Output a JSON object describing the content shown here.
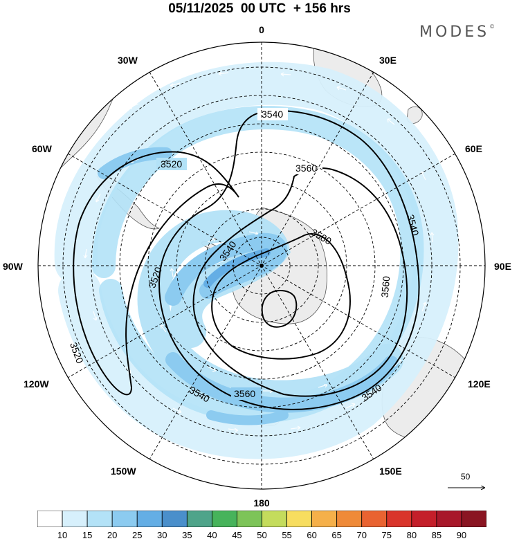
{
  "title": "05/11/2025  00 UTC  + 156 hrs",
  "brand": "MODES",
  "brand_mark": "©",
  "longitude_labels": {
    "top": "0",
    "bottom": "180",
    "left": "90W",
    "right": "90E",
    "nw30": "30W",
    "nw60": "60W",
    "sw120": "120W",
    "sw150": "150W",
    "ne30": "30E",
    "ne60": "60E",
    "se120": "120E",
    "se150": "150E"
  },
  "contour_labels": {
    "c3520a": "3520",
    "c3520b": "3520",
    "c3520c": "3520",
    "c3540a": "3540",
    "c3540b": "3540",
    "c3540c": "3540",
    "c3540d": "3540",
    "c3540e": "3540",
    "c3560a": "3560",
    "c3560b": "3560",
    "c3560c": "3560",
    "c3580": "3580"
  },
  "vector_scale_label": "50",
  "colorbar": {
    "ticks": [
      "10",
      "15",
      "20",
      "25",
      "30",
      "35",
      "40",
      "45",
      "50",
      "55",
      "60",
      "65",
      "70",
      "75",
      "80",
      "85",
      "90"
    ],
    "colors": [
      "#ffffff",
      "#d7f0fc",
      "#b3e2f7",
      "#8ccbf0",
      "#64aee5",
      "#4a8fcb",
      "#4fa48a",
      "#47b35b",
      "#7dc458",
      "#c4dc5c",
      "#f7dd5f",
      "#f5b04a",
      "#ef8a38",
      "#e96331",
      "#d9352b",
      "#c41f2a",
      "#a8182a",
      "#8a1522"
    ]
  },
  "colors": {
    "jet_light": "#d7f0fc",
    "jet_mid": "#b3e2f7",
    "jet_strong": "#8ccbf0",
    "jet_core": "#64aee5",
    "land": "#ececec"
  }
}
